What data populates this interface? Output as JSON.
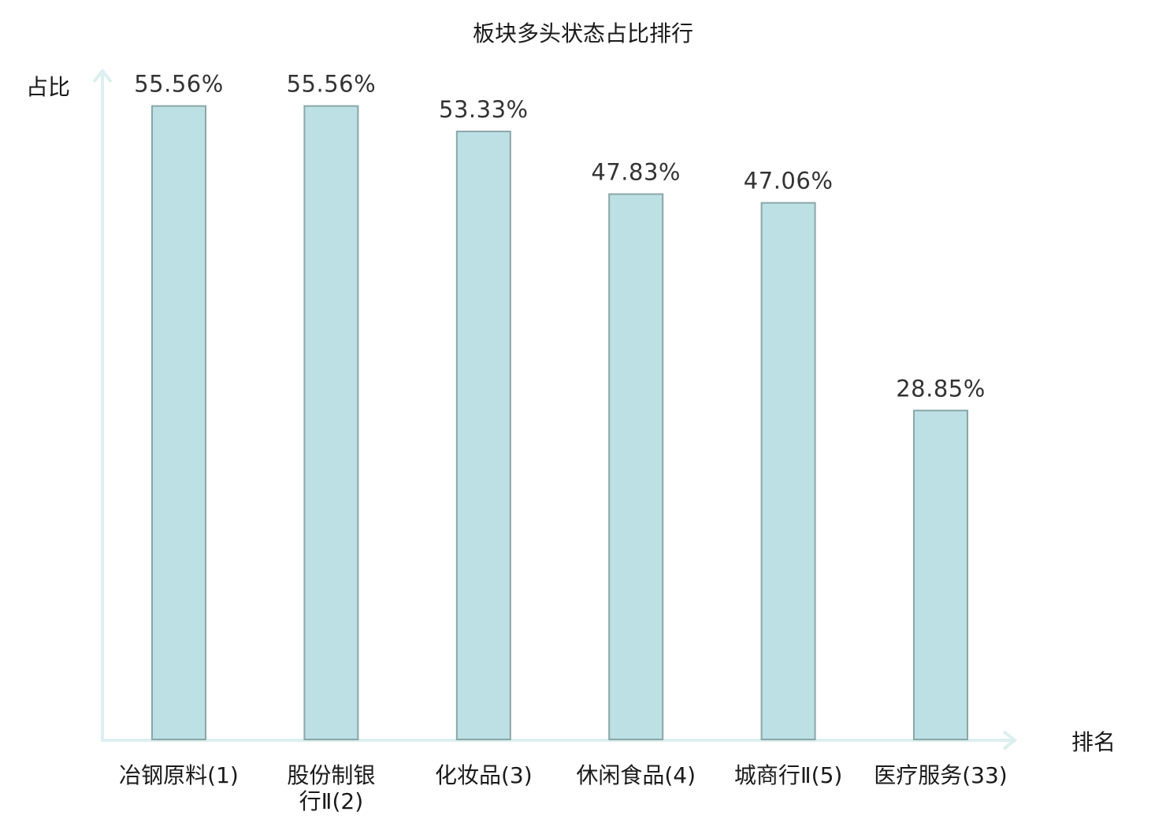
{
  "chart_data": {
    "type": "bar",
    "title": "板块多头状态占比排行",
    "ylabel": "占比",
    "xlabel": "排名",
    "grid": false,
    "legend": "none",
    "ylim": [
      0,
      58.5
    ],
    "categories": [
      [
        "冶钢原料(1)"
      ],
      [
        "股份制银",
        "行Ⅱ(2)"
      ],
      [
        "化妆品(3)"
      ],
      [
        "休闲食品(4)"
      ],
      [
        "城商行Ⅱ(5)"
      ],
      [
        "医疗服务(33)"
      ]
    ],
    "values": [
      55.56,
      55.56,
      53.33,
      47.83,
      47.06,
      28.85
    ],
    "value_labels": [
      "55.56%",
      "55.56%",
      "53.33%",
      "47.83%",
      "47.06%",
      "28.85%"
    ],
    "highlight_index": 5,
    "colors": {
      "bar_fill": "#bce0e3",
      "bar_stroke": "#8aa6a8",
      "axis": "#dcefee",
      "text": "#1a1a1a",
      "value_text": "#333333",
      "highlight_text": "#e00000"
    }
  }
}
